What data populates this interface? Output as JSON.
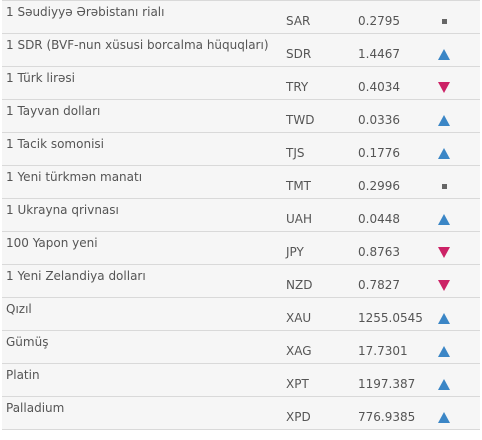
{
  "colors": {
    "up": "#3b86c6",
    "down": "#cc2266",
    "flat": "#666666",
    "row_background": "#f6f6f6",
    "separator": "#d9d9d9"
  },
  "rates": [
    {
      "name": "1 Səudiyyə Ərəbistanı rialı",
      "code": "SAR",
      "value": "0.2795",
      "trend": "flat",
      "trend_icon": "square-icon"
    },
    {
      "name": "1 SDR (BVF-nun xüsusi borcalma hüquqları)",
      "code": "SDR",
      "value": "1.4467",
      "trend": "up",
      "trend_icon": "triangle-up-icon"
    },
    {
      "name": "1 Türk lirəsi",
      "code": "TRY",
      "value": "0.4034",
      "trend": "down",
      "trend_icon": "triangle-down-icon"
    },
    {
      "name": "1 Tayvan dolları",
      "code": "TWD",
      "value": "0.0336",
      "trend": "up",
      "trend_icon": "triangle-up-icon"
    },
    {
      "name": "1 Tacik somonisi",
      "code": "TJS",
      "value": "0.1776",
      "trend": "up",
      "trend_icon": "triangle-up-icon"
    },
    {
      "name": "1 Yeni türkmən manatı",
      "code": "TMT",
      "value": "0.2996",
      "trend": "flat",
      "trend_icon": "square-icon"
    },
    {
      "name": "1 Ukrayna qrivnası",
      "code": "UAH",
      "value": "0.0448",
      "trend": "up",
      "trend_icon": "triangle-up-icon"
    },
    {
      "name": "100 Yapon yeni",
      "code": "JPY",
      "value": "0.8763",
      "trend": "down",
      "trend_icon": "triangle-down-icon"
    },
    {
      "name": "1 Yeni Zelandiya dolları",
      "code": "NZD",
      "value": "0.7827",
      "trend": "down",
      "trend_icon": "triangle-down-icon"
    },
    {
      "name": "Qızıl",
      "code": "XAU",
      "value": "1255.0545",
      "trend": "up",
      "trend_icon": "triangle-up-icon"
    },
    {
      "name": "Gümüş",
      "code": "XAG",
      "value": "17.7301",
      "trend": "up",
      "trend_icon": "triangle-up-icon"
    },
    {
      "name": "Platin",
      "code": "XPT",
      "value": "1197.387",
      "trend": "up",
      "trend_icon": "triangle-up-icon"
    },
    {
      "name": "Palladium",
      "code": "XPD",
      "value": "776.9385",
      "trend": "up",
      "trend_icon": "triangle-up-icon"
    }
  ]
}
